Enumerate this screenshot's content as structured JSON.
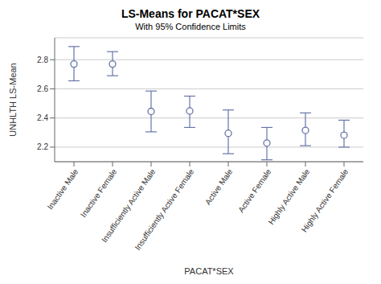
{
  "chart_data": {
    "type": "scatter",
    "title": "LS-Means for PACAT*SEX",
    "subtitle": "With 95% Confidence Limits",
    "x_label": "PACAT*SEX",
    "y_label": "UNHLTH LS-Mean",
    "categories": [
      "Inactive Male",
      "Inactive Female",
      "Insufficiently Active Male",
      "Insufficiently Active Female",
      "Active Male",
      "Active Female",
      "Highly Active Male",
      "Highly Active Female"
    ],
    "values": [
      2.77,
      2.77,
      2.445,
      2.448,
      2.295,
      2.228,
      2.315,
      2.282
    ],
    "lower_ci": [
      2.655,
      2.69,
      2.305,
      2.335,
      2.155,
      2.113,
      2.21,
      2.2
    ],
    "upper_ci": [
      2.89,
      2.855,
      2.585,
      2.55,
      2.455,
      2.335,
      2.435,
      2.385
    ],
    "color": "#6675a8",
    "marker": "circle",
    "ylim": [
      2.1,
      2.95
    ],
    "yticks": [
      2.2,
      2.4,
      2.6,
      2.8
    ],
    "grid": true
  }
}
